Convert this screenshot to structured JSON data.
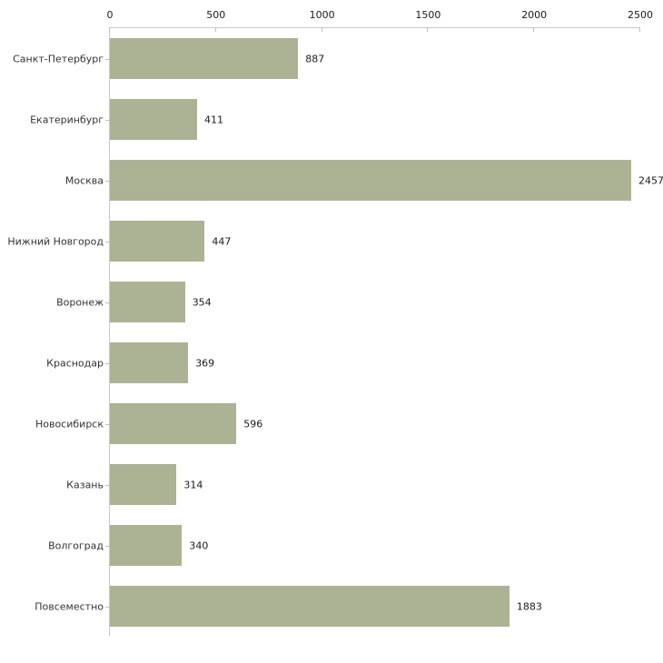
{
  "chart_data": {
    "type": "bar",
    "orientation": "horizontal",
    "title": "",
    "xlabel": "",
    "ylabel": "",
    "categories": [
      "Санкт-Петербург",
      "Екатеринбург",
      "Москва",
      "Нижний Новгород",
      "Воронеж",
      "Краснодар",
      "Новосибирск",
      "Казань",
      "Волгоград",
      "Повсеместно"
    ],
    "values": [
      887,
      411,
      2457,
      447,
      354,
      369,
      596,
      314,
      340,
      1883
    ],
    "value_labels": [
      "887",
      "411",
      "2457",
      "447",
      "354",
      "369",
      "596",
      "314",
      "340",
      "1883"
    ],
    "xlim": [
      0,
      2500
    ],
    "x_ticks": [
      0,
      500,
      1000,
      1500,
      2000,
      2500
    ],
    "x_tick_labels": [
      "0",
      "500",
      "1000",
      "1500",
      "2000",
      "2500"
    ],
    "axis_position": "top",
    "grid": false,
    "legend": "none",
    "colors": {
      "bar": "#acb294",
      "axis_line": "#c9c9c9",
      "tick": "#c2c29a",
      "category_label": "#333333",
      "value_text": "#1a1a1a",
      "background": "#ffffff"
    }
  }
}
